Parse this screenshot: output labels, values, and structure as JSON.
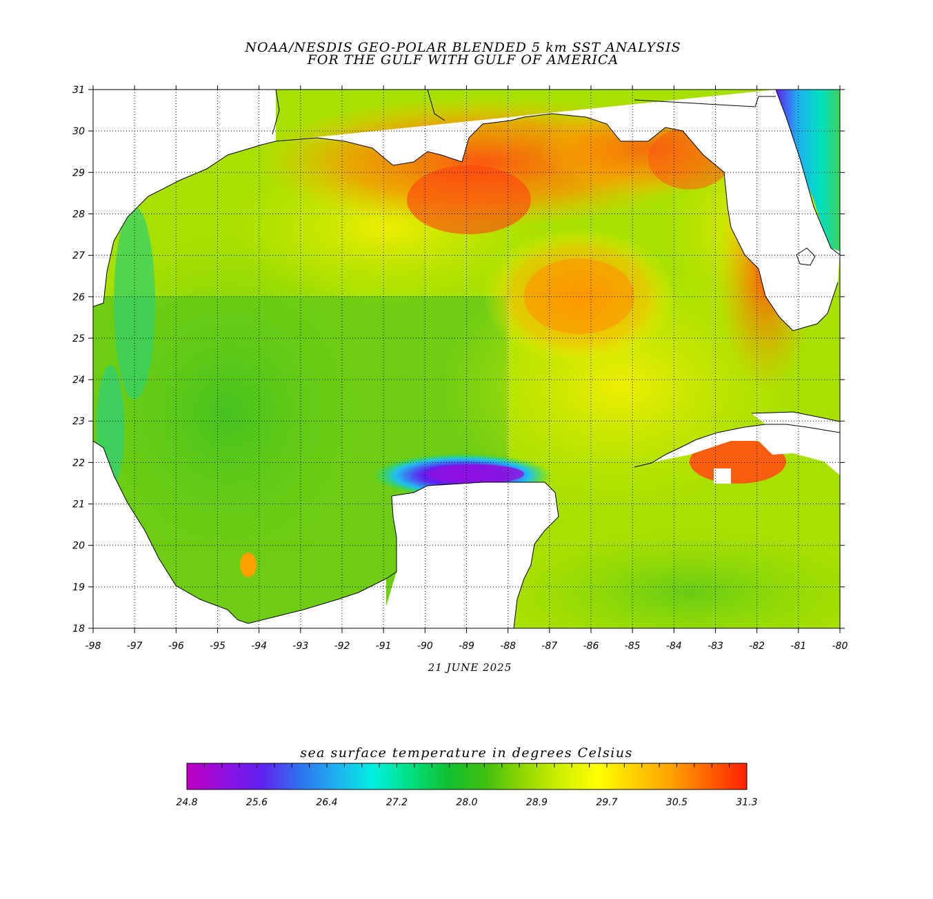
{
  "header": {
    "title_line1": "NOAA/NESDIS GEO-POLAR BLENDED 5 km SST ANALYSIS",
    "title_line2": "FOR THE GULF WITH GULF OF AMERICA"
  },
  "date_label": "21 JUNE 2025",
  "map": {
    "x_ticks": [
      "-98",
      "-97",
      "-96",
      "-95",
      "-94",
      "-93",
      "-92",
      "-91",
      "-90",
      "-89",
      "-88",
      "-87",
      "-86",
      "-85",
      "-84",
      "-83",
      "-82",
      "-81",
      "-80"
    ],
    "y_ticks": [
      "18",
      "19",
      "20",
      "21",
      "22",
      "23",
      "24",
      "25",
      "26",
      "27",
      "28",
      "29",
      "30",
      "31"
    ],
    "lon_range": [
      -98,
      -80
    ],
    "lat_range": [
      18,
      31
    ],
    "grid": "dotted",
    "land_color": "#ffffff"
  },
  "colorbar": {
    "title": "sea surface temperature in degrees Celsius",
    "tick_labels": [
      "24.8",
      "25.6",
      "26.4",
      "27.2",
      "28.0",
      "28.9",
      "29.7",
      "30.5",
      "31.3"
    ],
    "range": [
      24.8,
      31.3
    ],
    "colors": [
      "#c000c0",
      "#9010e0",
      "#6020f0",
      "#3070f0",
      "#20b0f0",
      "#00f0e0",
      "#00e080",
      "#10c030",
      "#40c010",
      "#90d800",
      "#d0f000",
      "#ffff00",
      "#ffd000",
      "#ffa000",
      "#ff6000",
      "#ff2000"
    ]
  }
}
